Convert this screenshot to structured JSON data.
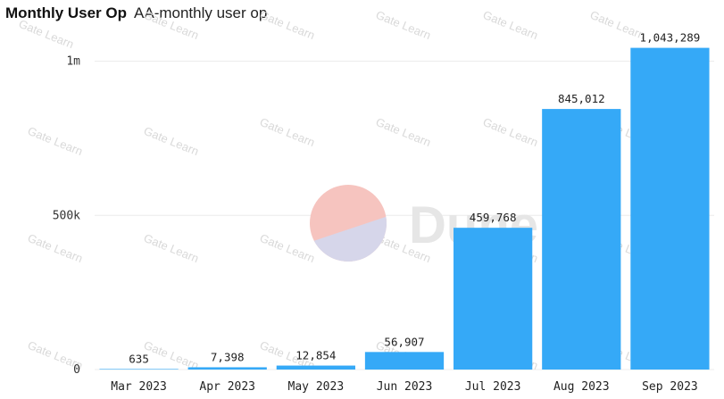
{
  "header": {
    "title": "Monthly User Op",
    "subtitle": "AA-monthly user op"
  },
  "watermark": {
    "brand": "Dune",
    "repeat_text": "Gate Learn",
    "colors": {
      "circle_top": "#f6c4bf",
      "circle_bottom": "#d6d6ea",
      "text": "#e6e6e6"
    }
  },
  "colors": {
    "bar": "#35a9f7",
    "gridline": "#ececec",
    "axis_text": "#333333"
  },
  "chart_data": {
    "type": "bar",
    "title": "Monthly User Op",
    "subtitle": "AA-monthly user op",
    "xlabel": "",
    "ylabel": "",
    "categories": [
      "Mar 2023",
      "Apr 2023",
      "May 2023",
      "Jun 2023",
      "Jul 2023",
      "Aug 2023",
      "Sep 2023"
    ],
    "values": [
      635,
      7398,
      12854,
      56907,
      459768,
      845012,
      1043289
    ],
    "data_labels": [
      "635",
      "7,398",
      "12,854",
      "56,907",
      "459,768",
      "845,012",
      "1,043,289"
    ],
    "y_ticks": [
      {
        "value": 0,
        "label": "0"
      },
      {
        "value": 500000,
        "label": "500k"
      },
      {
        "value": 1000000,
        "label": "1m"
      }
    ],
    "ylim": [
      0,
      1100000
    ],
    "grid": true,
    "legend": "none"
  }
}
